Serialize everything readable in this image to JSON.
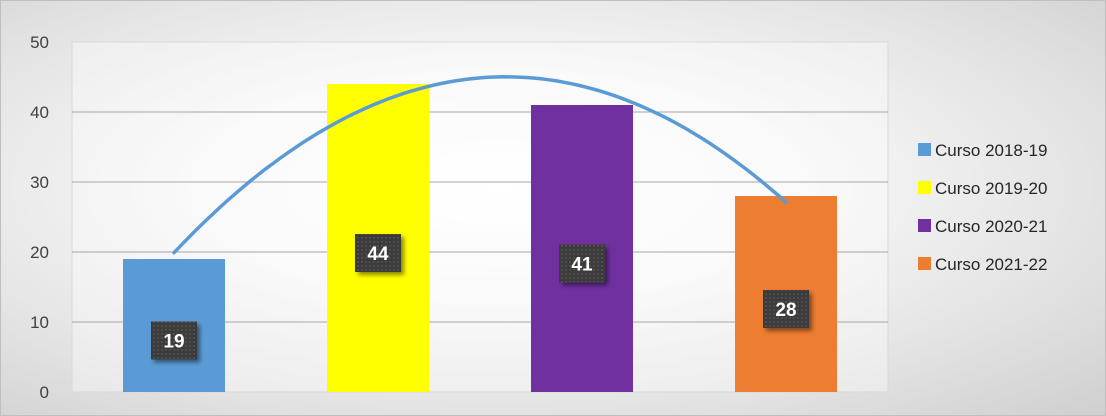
{
  "chart_data": {
    "type": "bar",
    "categories": [
      "Curso 2018-19",
      "Curso 2019-20",
      "Curso 2020-21",
      "Curso 2021-22"
    ],
    "values": [
      19,
      44,
      41,
      28
    ],
    "colors": [
      "#5b9bd5",
      "#ffff00",
      "#7030a0",
      "#ed7d31"
    ],
    "ylim": [
      0,
      50
    ],
    "yticks": [
      0,
      10,
      20,
      30,
      40,
      50
    ],
    "grid": true,
    "legend": "right",
    "data_labels": true,
    "trendline": {
      "type": "polynomial",
      "color": "#5b9bd5"
    },
    "title": "",
    "xlabel": "",
    "ylabel": ""
  }
}
